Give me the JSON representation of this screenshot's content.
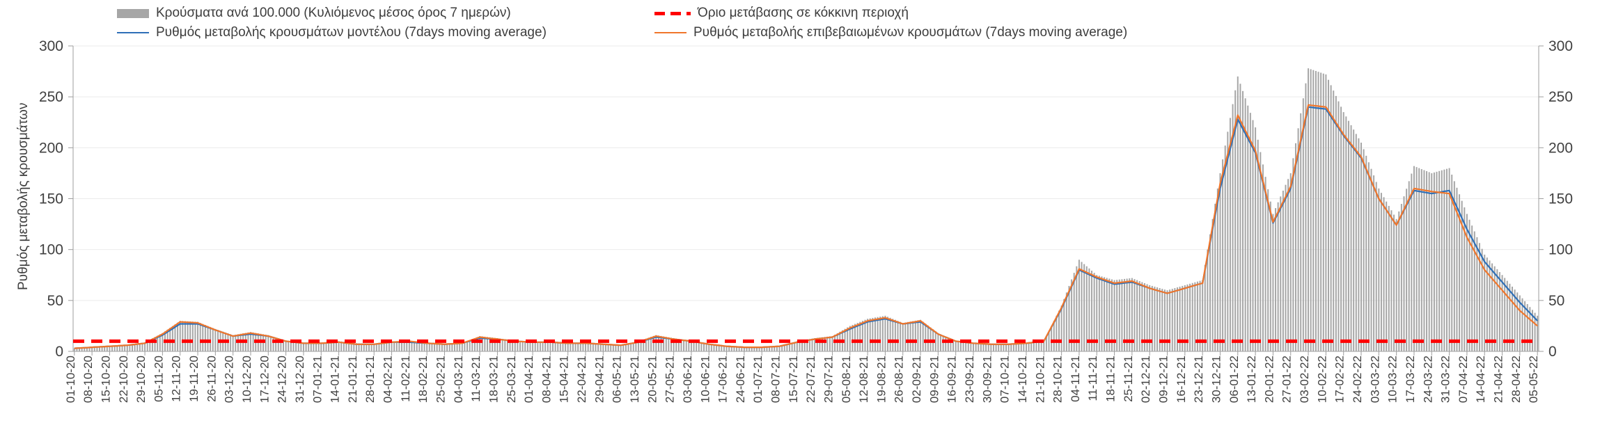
{
  "legend": {
    "bars_label": "Κρούσματα ανά 100.000 (Κυλιόμενος μέσος όρος 7 ημερών)",
    "threshold_label": "Όριο μετάβασης σε κόκκινη περιοχή",
    "model_label": "Ρυθμός μεταβολής κρουσμάτων μοντέλου (7days moving average)",
    "confirmed_label": "Ρυθμός μεταβολής επιβεβαιωμένων κρουσμάτων (7days moving average)"
  },
  "y_axis_title": "Ρυθμός μεταβολής κρουσμάτων",
  "colors": {
    "bars": "#a6a6a6",
    "model_line": "#2e6fb7",
    "confirmed_line": "#f0762b",
    "threshold": "#ff0000",
    "axis_text": "#404040",
    "grid": "#ebebeb",
    "axis_line": "#9e9e9e"
  },
  "chart_data": {
    "type": "combo",
    "title": "",
    "xlabel": "",
    "ylabel": "Ρυθμός μεταβολής κρουσμάτων",
    "ylim": [
      0,
      300
    ],
    "yticks": [
      0,
      50,
      100,
      150,
      200,
      250,
      300
    ],
    "grid": "horizontal-light",
    "legend_position": "top",
    "threshold": 10,
    "categories": [
      "01-10-20",
      "08-10-20",
      "15-10-20",
      "22-10-20",
      "29-10-20",
      "05-11-20",
      "12-11-20",
      "19-11-20",
      "26-11-20",
      "03-12-20",
      "10-12-20",
      "17-12-20",
      "24-12-20",
      "31-12-20",
      "07-01-21",
      "14-01-21",
      "21-01-21",
      "28-01-21",
      "04-02-21",
      "11-02-21",
      "18-02-21",
      "25-02-21",
      "04-03-21",
      "11-03-21",
      "18-03-21",
      "25-03-21",
      "01-04-21",
      "08-04-21",
      "15-04-21",
      "22-04-21",
      "29-04-21",
      "06-05-21",
      "13-05-21",
      "20-05-21",
      "27-05-21",
      "03-06-21",
      "10-06-21",
      "17-06-21",
      "24-06-21",
      "01-07-21",
      "08-07-21",
      "15-07-21",
      "22-07-21",
      "29-07-21",
      "05-08-21",
      "12-08-21",
      "19-08-21",
      "26-08-21",
      "02-09-21",
      "09-09-21",
      "16-09-21",
      "23-09-21",
      "30-09-21",
      "07-10-21",
      "14-10-21",
      "21-10-21",
      "28-10-21",
      "04-11-21",
      "11-11-21",
      "18-11-21",
      "25-11-21",
      "02-12-21",
      "09-12-21",
      "16-12-21",
      "23-12-21",
      "30-12-21",
      "06-01-22",
      "13-01-22",
      "20-01-22",
      "27-01-22",
      "03-02-22",
      "10-02-22",
      "17-02-22",
      "24-02-22",
      "03-03-22",
      "10-03-22",
      "17-03-22",
      "24-03-22",
      "31-03-22",
      "07-04-22",
      "14-04-22",
      "21-04-22",
      "28-04-22",
      "05-05-22"
    ],
    "series": [
      {
        "name": "Κρούσματα ανά 100.000 (Κυλιόμενος μέσος όρος 7 ημερών)",
        "type": "bar",
        "color": "#a6a6a6",
        "values": [
          3,
          4,
          5,
          6,
          9,
          18,
          30,
          29,
          22,
          16,
          19,
          16,
          10,
          8,
          8,
          10,
          8,
          7,
          10,
          10,
          8,
          7,
          8,
          15,
          13,
          10,
          9,
          10,
          9,
          8,
          7,
          6,
          10,
          16,
          13,
          10,
          7,
          5,
          4,
          4,
          5,
          10,
          13,
          15,
          25,
          32,
          35,
          28,
          31,
          18,
          10,
          8,
          7,
          7,
          8,
          10,
          45,
          90,
          75,
          70,
          72,
          65,
          60,
          65,
          70,
          175,
          270,
          220,
          135,
          175,
          278,
          272,
          235,
          205,
          160,
          130,
          182,
          175,
          180,
          135,
          95,
          75,
          55,
          35
        ]
      },
      {
        "name": "Ρυθμός μεταβολής κρουσμάτων μοντέλου (7days moving average)",
        "type": "line",
        "color": "#2e6fb7",
        "values": [
          3,
          4,
          5,
          6,
          8,
          16,
          27,
          27,
          21,
          15,
          17,
          15,
          10,
          8,
          8,
          9,
          7,
          7,
          9,
          9,
          8,
          7,
          8,
          13,
          12,
          10,
          9,
          9,
          8,
          8,
          7,
          6,
          9,
          14,
          12,
          10,
          7,
          5,
          4,
          4,
          5,
          9,
          12,
          14,
          22,
          29,
          32,
          27,
          29,
          17,
          10,
          8,
          7,
          7,
          8,
          10,
          42,
          80,
          72,
          66,
          68,
          62,
          57,
          62,
          67,
          160,
          228,
          195,
          126,
          160,
          240,
          238,
          212,
          190,
          150,
          124,
          158,
          155,
          158,
          120,
          88,
          68,
          48,
          30
        ]
      },
      {
        "name": "Ρυθμός μεταβολής επιβεβαιωμένων κρουσμάτων (7days moving average)",
        "type": "line",
        "color": "#f0762b",
        "values": [
          3,
          4,
          5,
          6,
          8,
          17,
          29,
          28,
          21,
          15,
          18,
          15,
          10,
          8,
          8,
          9,
          7,
          7,
          9,
          10,
          8,
          7,
          8,
          14,
          12,
          10,
          9,
          9,
          8,
          8,
          7,
          6,
          9,
          15,
          12,
          10,
          7,
          5,
          4,
          4,
          5,
          9,
          12,
          14,
          23,
          30,
          33,
          27,
          30,
          17,
          10,
          8,
          7,
          7,
          8,
          10,
          43,
          81,
          73,
          67,
          69,
          62,
          57,
          62,
          67,
          165,
          232,
          197,
          127,
          162,
          242,
          240,
          213,
          191,
          150,
          124,
          160,
          157,
          155,
          112,
          80,
          60,
          40,
          25
        ]
      },
      {
        "name": "Όριο μετάβασης σε κόκκινη περιοχή",
        "type": "dashed-threshold",
        "color": "#ff0000",
        "value": 10
      }
    ]
  }
}
